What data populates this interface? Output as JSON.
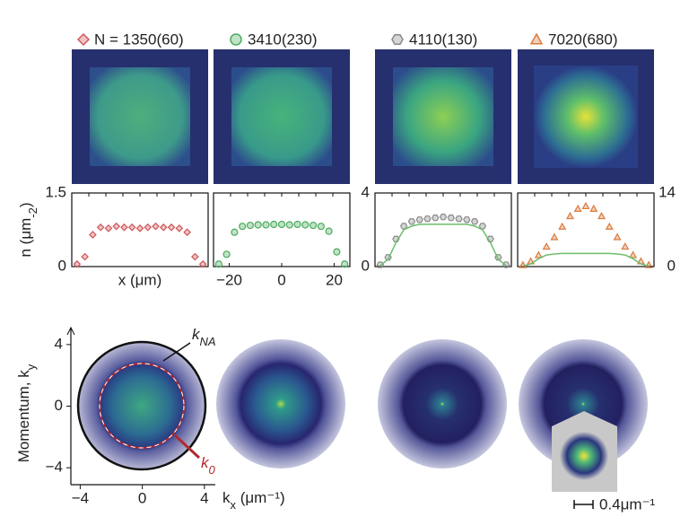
{
  "chart_data": [
    {
      "type": "scatter",
      "x": [
        -24,
        -21,
        -18,
        -15,
        -12,
        -9,
        -6,
        -3,
        0,
        3,
        6,
        9,
        12,
        15,
        18,
        21,
        24
      ],
      "series": [
        {
          "name": "N = 1350(60)",
          "color": "#d0575a",
          "marker": "diamond",
          "values": [
            0.05,
            0.2,
            0.65,
            0.8,
            0.78,
            0.82,
            0.8,
            0.8,
            0.78,
            0.8,
            0.82,
            0.8,
            0.8,
            0.78,
            0.7,
            0.2,
            0.05
          ]
        }
      ],
      "xlim": [
        -26,
        26
      ],
      "ylim": [
        0,
        1.5
      ],
      "yticks": [
        0,
        1.5
      ],
      "ylabel": [
        "n (μm",
        "-2",
        ")"
      ],
      "xlabel": "x (μm)"
    },
    {
      "type": "scatter",
      "x": [
        -24,
        -21,
        -18,
        -15,
        -12,
        -9,
        -6,
        -3,
        0,
        3,
        6,
        9,
        12,
        15,
        18,
        21,
        24
      ],
      "series": [
        {
          "name": "3410(230)",
          "color": "#4cab5e",
          "marker": "circle",
          "values": [
            0.05,
            0.25,
            0.7,
            0.82,
            0.84,
            0.85,
            0.85,
            0.86,
            0.86,
            0.85,
            0.86,
            0.85,
            0.84,
            0.82,
            0.72,
            0.3,
            0.05
          ]
        }
      ],
      "xlim": [
        -26,
        26
      ],
      "ylim": [
        0,
        1.5
      ],
      "xticks": [
        {
          "value": -20,
          "label": "−20"
        },
        0,
        20
      ]
    },
    {
      "type": "scatter",
      "x": [
        -24,
        -21,
        -18,
        -15,
        -12,
        -9,
        -6,
        -3,
        0,
        3,
        6,
        9,
        12,
        15,
        18,
        21,
        24
      ],
      "series": [
        {
          "name": "4110(130)",
          "color": "#8a8a8a",
          "marker": "hexagon",
          "values": [
            0.1,
            0.5,
            1.5,
            2.2,
            2.45,
            2.55,
            2.6,
            2.65,
            2.7,
            2.65,
            2.6,
            2.55,
            2.45,
            2.2,
            1.5,
            0.5,
            0.1
          ]
        },
        {
          "color": "#6bbd6b",
          "line": true,
          "values": [
            0.05,
            0.4,
            1.3,
            2.0,
            2.2,
            2.3,
            2.3,
            2.3,
            2.3,
            2.3,
            2.3,
            2.3,
            2.2,
            2.0,
            1.3,
            0.4,
            0.05
          ]
        }
      ],
      "xlim": [
        -26,
        26
      ],
      "ylim": [
        0,
        4
      ],
      "yticks": [
        0,
        4
      ]
    },
    {
      "type": "scatter",
      "x": [
        -24,
        -21,
        -18,
        -15,
        -12,
        -9,
        -6,
        -3,
        0,
        3,
        6,
        9,
        12,
        15,
        18,
        21,
        24
      ],
      "series": [
        {
          "name": "7020(680)",
          "color": "#d97b3e",
          "marker": "triangle",
          "values": [
            0.3,
            1.0,
            2.2,
            3.8,
            5.6,
            7.6,
            9.6,
            11,
            11.5,
            11,
            9.6,
            7.6,
            5.6,
            3.8,
            2.2,
            1.0,
            0.3
          ]
        },
        {
          "color": "#6bbd6b",
          "line": true,
          "values": [
            0.1,
            0.5,
            1.5,
            2.2,
            2.4,
            2.5,
            2.5,
            2.5,
            2.5,
            2.5,
            2.5,
            2.5,
            2.4,
            2.2,
            1.5,
            0.5,
            0.1
          ]
        }
      ],
      "xlim": [
        -26,
        26
      ],
      "ylim": [
        0,
        14
      ],
      "yticks": [
        0,
        14
      ],
      "yaxis_side": "right"
    },
    {
      "type": "momentum-image",
      "xlim": [
        -4.6,
        4.7
      ],
      "ylim": [
        -5.1,
        5.1
      ],
      "xticks": [
        {
          "value": -4,
          "label": "−4"
        },
        0,
        4
      ],
      "yticks": [
        {
          "value": -4,
          "label": "−4"
        },
        0,
        4
      ],
      "xlabel": [
        "k",
        "x",
        " (μm⁻¹)"
      ],
      "ylabel": [
        "Momentum, k",
        "y"
      ],
      "annotations": [
        [
          "k",
          "NA"
        ],
        [
          "k",
          "0"
        ]
      ],
      "scale_bar": "0.4μm⁻¹"
    }
  ]
}
